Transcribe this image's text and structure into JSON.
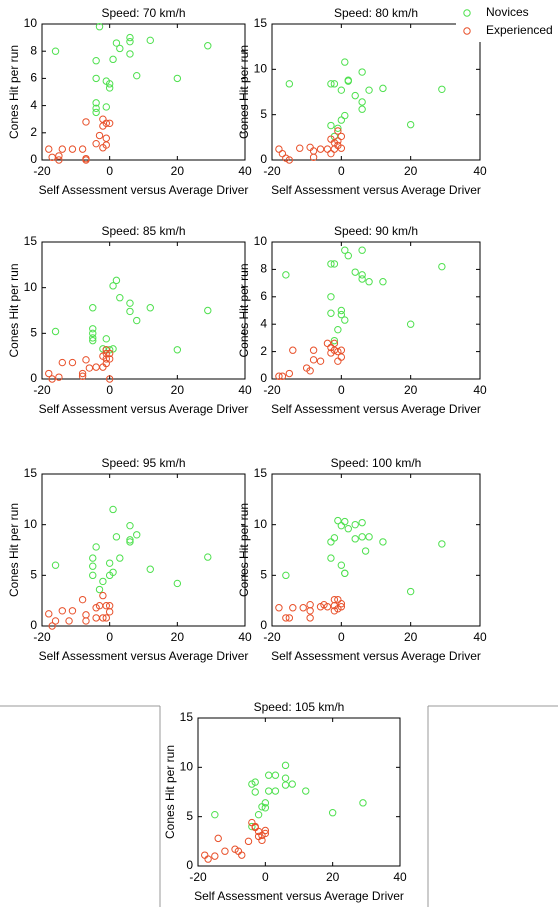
{
  "chart_data": [
    {
      "type": "scatter",
      "title": "Speed: 70 km/h",
      "xlabel": "Self Assessment versus Average Driver",
      "ylabel": "Cones Hit per run",
      "xlim": [
        -20,
        40
      ],
      "ylim": [
        0,
        10
      ],
      "xticks": [
        -20,
        0,
        20,
        40
      ],
      "yticks": [
        0,
        2,
        4,
        6,
        8,
        10
      ],
      "series": [
        {
          "name": "Novices",
          "color": "#4ee04e",
          "x": [
            -16,
            -3,
            -4,
            -4,
            -4,
            -4,
            -4,
            -1,
            -1,
            0,
            1,
            2,
            3,
            6,
            6,
            6,
            8,
            12,
            20,
            29,
            0
          ],
          "values": [
            8,
            9.8,
            7.3,
            6,
            4.2,
            3.8,
            3.5,
            3.9,
            5.8,
            5.6,
            7.4,
            8.6,
            8.2,
            8.7,
            9,
            7.8,
            6.2,
            8.8,
            6,
            8.4,
            5.3
          ]
        },
        {
          "name": "Experienced",
          "color": "#e8502a",
          "x": [
            -18,
            -17,
            -15,
            -14,
            -11,
            -8,
            -7,
            -7,
            -7,
            -4,
            -3,
            -2,
            -2,
            -1,
            -1,
            -1,
            0,
            -2,
            -15
          ],
          "values": [
            0.8,
            0.2,
            0.3,
            0.8,
            0.8,
            0.8,
            0.1,
            0,
            2.8,
            1.2,
            1.8,
            3,
            2.5,
            2.7,
            1.6,
            1.1,
            2.7,
            0.9,
            0
          ]
        }
      ]
    },
    {
      "type": "scatter",
      "title": "Speed: 80 km/h",
      "xlabel": "Self Assessment versus Average Driver",
      "ylabel": "Cones Hit per run",
      "xlim": [
        -20,
        40
      ],
      "ylim": [
        0,
        15
      ],
      "xticks": [
        -20,
        0,
        20,
        40
      ],
      "yticks": [
        0,
        5,
        10,
        15
      ],
      "legend": "upper right",
      "series": [
        {
          "name": "Novices",
          "color": "#4ee04e",
          "x": [
            -15,
            -3,
            -2,
            1,
            0,
            2,
            4,
            6,
            6,
            6,
            8,
            12,
            20,
            29,
            -3,
            0,
            1,
            -1,
            -2,
            2
          ],
          "values": [
            8.4,
            8.4,
            8.4,
            10.8,
            7.7,
            8.7,
            7.1,
            9.7,
            6.4,
            5.6,
            7.7,
            7.9,
            3.9,
            7.8,
            3.8,
            4.4,
            4.9,
            3.5,
            2.6,
            8.8
          ]
        },
        {
          "name": "Experienced",
          "color": "#e8502a",
          "x": [
            -18,
            -17,
            -16,
            -15,
            -12,
            -9,
            -8,
            -8,
            -6,
            -4,
            -3,
            -2,
            -2,
            -1,
            0,
            -1,
            -3,
            0,
            -1
          ],
          "values": [
            1.2,
            0.7,
            0.2,
            0,
            1.3,
            1.4,
            0.3,
            1,
            1.2,
            1.2,
            2.3,
            1.9,
            1.2,
            2.1,
            2.6,
            1.6,
            0.7,
            1.3,
            3.2
          ]
        }
      ]
    },
    {
      "type": "scatter",
      "title": "Speed: 85 km/h",
      "xlabel": "Self Assessment versus Average Driver",
      "ylabel": "Cones Hit per run",
      "xlim": [
        -20,
        40
      ],
      "ylim": [
        0,
        15
      ],
      "xticks": [
        -20,
        0,
        20,
        40
      ],
      "yticks": [
        0,
        5,
        10,
        15
      ],
      "series": [
        {
          "name": "Novices",
          "color": "#4ee04e",
          "x": [
            -16,
            -5,
            -5,
            -5,
            -5,
            -5,
            -1,
            -1,
            0,
            1,
            2,
            3,
            6,
            6,
            8,
            12,
            20,
            29,
            -2,
            1
          ],
          "values": [
            5.2,
            7.8,
            5.5,
            5,
            4.5,
            4.2,
            4.4,
            3.2,
            3.2,
            10.2,
            10.8,
            8.9,
            8.3,
            7.4,
            6.4,
            7.8,
            3.2,
            7.5,
            3.3,
            3.3
          ]
        },
        {
          "name": "Experienced",
          "color": "#e8502a",
          "x": [
            -18,
            -17,
            -15,
            -14,
            -11,
            -8,
            -8,
            -7,
            -4,
            -2,
            -1,
            -1,
            -1,
            0,
            0,
            -2,
            -1,
            -6,
            0
          ],
          "values": [
            0.6,
            0,
            0.2,
            1.8,
            1.8,
            0.6,
            0.3,
            2.1,
            1.3,
            1.3,
            2.2,
            2.8,
            3.2,
            2.8,
            2.2,
            2.5,
            1.7,
            1.2,
            0
          ]
        }
      ]
    },
    {
      "type": "scatter",
      "title": "Speed: 90 km/h",
      "xlabel": "Self Assessment versus Average Driver",
      "ylabel": "Cones Hit per run",
      "xlim": [
        -20,
        40
      ],
      "ylim": [
        0,
        10
      ],
      "xticks": [
        -20,
        0,
        20,
        40
      ],
      "yticks": [
        0,
        2,
        4,
        6,
        8,
        10
      ],
      "series": [
        {
          "name": "Novices",
          "color": "#4ee04e",
          "x": [
            -16,
            -3,
            -2,
            1,
            2,
            -3,
            -3,
            0,
            1,
            -1,
            -2,
            4,
            6,
            6,
            6,
            8,
            12,
            20,
            29,
            0
          ],
          "values": [
            7.6,
            8.4,
            8.4,
            9.4,
            9,
            6,
            4.8,
            5,
            4.3,
            3.6,
            2.8,
            7.8,
            9.4,
            7.6,
            7.3,
            7.1,
            7.1,
            4,
            8.2,
            4.7
          ]
        },
        {
          "name": "Experienced",
          "color": "#e8502a",
          "x": [
            -18,
            -17,
            -15,
            -14,
            -10,
            -9,
            -8,
            -8,
            -6,
            -3,
            -2,
            -2,
            -1,
            0,
            0,
            -1,
            -3,
            -4
          ],
          "values": [
            0.2,
            0.2,
            0.4,
            2.1,
            0.8,
            0.6,
            2.1,
            1.4,
            1.3,
            1.9,
            2.6,
            2.1,
            2,
            2.1,
            1.6,
            1.3,
            2.3,
            2.6
          ]
        }
      ]
    },
    {
      "type": "scatter",
      "title": "Speed: 95 km/h",
      "xlabel": "Self Assessment versus Average Driver",
      "ylabel": "Cones Hit per run",
      "xlim": [
        -20,
        40
      ],
      "ylim": [
        0,
        15
      ],
      "xticks": [
        -20,
        0,
        20,
        40
      ],
      "yticks": [
        0,
        5,
        10,
        15
      ],
      "series": [
        {
          "name": "Novices",
          "color": "#4ee04e",
          "x": [
            -16,
            -5,
            -5,
            -5,
            -4,
            -2,
            0,
            0,
            1,
            1,
            2,
            3,
            6,
            6,
            6,
            8,
            12,
            20,
            29,
            -3
          ],
          "values": [
            6,
            5,
            5.9,
            6.7,
            7.8,
            4.4,
            5,
            6.2,
            11.5,
            5.3,
            8.8,
            6.7,
            9.9,
            8.5,
            8.3,
            9,
            5.6,
            4.2,
            6.8,
            3.6
          ]
        },
        {
          "name": "Experienced",
          "color": "#e8502a",
          "x": [
            -18,
            -17,
            -16,
            -14,
            -11,
            -8,
            -7,
            -7,
            -4,
            -4,
            -2,
            -3,
            -1,
            0,
            0,
            -2,
            -1,
            -12
          ],
          "values": [
            1.2,
            0,
            0.5,
            1.5,
            1.5,
            2.6,
            1.1,
            0.5,
            0.8,
            1.8,
            3,
            2,
            2,
            2,
            1.4,
            0.8,
            0.8,
            0.5
          ]
        }
      ]
    },
    {
      "type": "scatter",
      "title": "Speed: 100 km/h",
      "xlabel": "Self Assessment versus Average Driver",
      "ylabel": "Cones Hit per run",
      "xlim": [
        -20,
        40
      ],
      "ylim": [
        0,
        15
      ],
      "xticks": [
        -20,
        0,
        20,
        40
      ],
      "yticks": [
        0,
        5,
        10,
        15
      ],
      "series": [
        {
          "name": "Novices",
          "color": "#4ee04e",
          "x": [
            -16,
            -3,
            -3,
            -2,
            0,
            1,
            1,
            1,
            2,
            4,
            4,
            6,
            6,
            7,
            8,
            12,
            20,
            29,
            -1,
            0
          ],
          "values": [
            5,
            8.3,
            6.7,
            8.7,
            6,
            5.2,
            10.3,
            5.2,
            9.6,
            10,
            8.6,
            10.2,
            8.8,
            7.4,
            8.8,
            8.3,
            3.4,
            8.1,
            10.4,
            9.9
          ]
        },
        {
          "name": "Experienced",
          "color": "#e8502a",
          "x": [
            -18,
            -16,
            -15,
            -14,
            -11,
            -9,
            -9,
            -9,
            -6,
            -4,
            -2,
            -2,
            -1,
            0,
            0,
            -1,
            -5,
            -2
          ],
          "values": [
            1.8,
            0.8,
            0.8,
            1.8,
            1.8,
            1.5,
            2.1,
            0.8,
            1.9,
            1.9,
            2.6,
            2,
            2.6,
            2.2,
            1.9,
            1.7,
            2.1,
            1.5
          ]
        }
      ]
    },
    {
      "type": "scatter",
      "title": "Speed: 105 km/h",
      "xlabel": "Self Assessment versus Average Driver",
      "ylabel": "Cones Hit per run",
      "xlim": [
        -20,
        40
      ],
      "ylim": [
        0,
        15
      ],
      "xticks": [
        -20,
        0,
        20,
        40
      ],
      "yticks": [
        0,
        5,
        10,
        15
      ],
      "series": [
        {
          "name": "Novices",
          "color": "#4ee04e",
          "x": [
            -15,
            -3,
            -4,
            -3,
            -4,
            -2,
            0,
            1,
            1,
            3,
            3,
            6,
            6,
            6,
            8,
            12,
            20,
            29,
            0,
            -1
          ],
          "values": [
            5.2,
            8.5,
            8.3,
            7.5,
            4,
            5.2,
            6.4,
            9.2,
            7.6,
            9.2,
            7.6,
            10.2,
            8.9,
            8.2,
            8.3,
            7.6,
            5.4,
            6.4,
            5.9,
            6
          ]
        },
        {
          "name": "Experienced",
          "color": "#e8502a",
          "x": [
            -18,
            -17,
            -15,
            -14,
            -12,
            -9,
            -8,
            -7,
            -5,
            -4,
            -3,
            -2,
            -1,
            0,
            -1,
            -2,
            -3,
            0
          ],
          "values": [
            1.1,
            0.7,
            1,
            2.8,
            1.5,
            1.7,
            1.5,
            1.1,
            2.5,
            4.4,
            4,
            3.5,
            3.1,
            3.6,
            2.6,
            3,
            3.9,
            3.3
          ]
        }
      ]
    }
  ]
}
